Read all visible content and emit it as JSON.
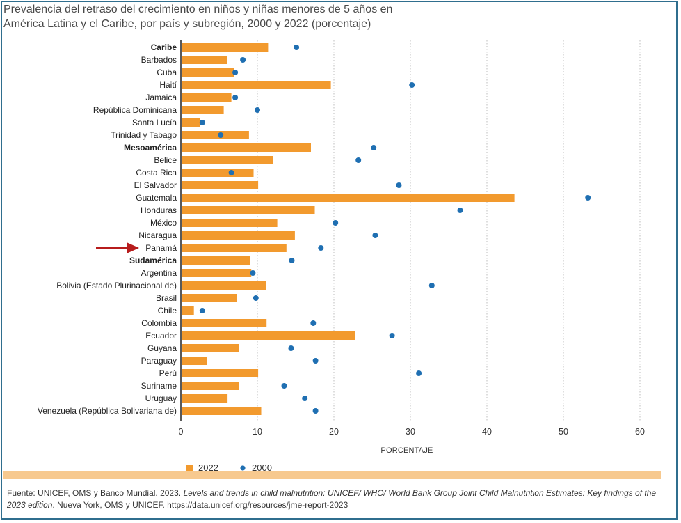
{
  "title": {
    "line1": "Prevalencia del retraso del crecimiento en niños y niñas menores de 5 años en",
    "line2": "América Latina y el Caribe, por país y subregión, 2000 y 2022 (porcentaje)"
  },
  "chart_data": {
    "type": "bar",
    "orientation": "horizontal",
    "title": "Prevalencia del retraso del crecimiento en niños y niñas menores de 5 años en América Latina y el Caribe, por país y subregión, 2000 y 2022 (porcentaje)",
    "xlabel": "PORCENTAJE",
    "xlim": [
      0,
      60
    ],
    "xticks": [
      "0",
      "10",
      "20",
      "30",
      "40",
      "50",
      "60"
    ],
    "grid": "vertical-dotted",
    "legend_position": "bottom-left",
    "highlight_marker": "arrow",
    "categories": [
      {
        "name": "Caribe",
        "bold": true,
        "highlight": false
      },
      {
        "name": "Barbados",
        "bold": false,
        "highlight": false
      },
      {
        "name": "Cuba",
        "bold": false,
        "highlight": false
      },
      {
        "name": "Haití",
        "bold": false,
        "highlight": false
      },
      {
        "name": "Jamaica",
        "bold": false,
        "highlight": false
      },
      {
        "name": "República Dominicana",
        "bold": false,
        "highlight": false
      },
      {
        "name": "Santa Lucía",
        "bold": false,
        "highlight": false
      },
      {
        "name": "Trinidad y Tabago",
        "bold": false,
        "highlight": false
      },
      {
        "name": "Mesoamérica",
        "bold": true,
        "highlight": false
      },
      {
        "name": "Belice",
        "bold": false,
        "highlight": false
      },
      {
        "name": "Costa Rica",
        "bold": false,
        "highlight": false
      },
      {
        "name": "El Salvador",
        "bold": false,
        "highlight": false
      },
      {
        "name": "Guatemala",
        "bold": false,
        "highlight": false
      },
      {
        "name": "Honduras",
        "bold": false,
        "highlight": false
      },
      {
        "name": "México",
        "bold": false,
        "highlight": false
      },
      {
        "name": "Nicaragua",
        "bold": false,
        "highlight": false
      },
      {
        "name": "Panamá",
        "bold": false,
        "highlight": true
      },
      {
        "name": "Sudamérica",
        "bold": true,
        "highlight": false
      },
      {
        "name": "Argentina",
        "bold": false,
        "highlight": false
      },
      {
        "name": "Bolivia (Estado Plurinacional de)",
        "bold": false,
        "highlight": false
      },
      {
        "name": "Brasil",
        "bold": false,
        "highlight": false
      },
      {
        "name": "Chile",
        "bold": false,
        "highlight": false
      },
      {
        "name": "Colombia",
        "bold": false,
        "highlight": false
      },
      {
        "name": "Ecuador",
        "bold": false,
        "highlight": false
      },
      {
        "name": "Guyana",
        "bold": false,
        "highlight": false
      },
      {
        "name": "Paraguay",
        "bold": false,
        "highlight": false
      },
      {
        "name": "Perú",
        "bold": false,
        "highlight": false
      },
      {
        "name": "Suriname",
        "bold": false,
        "highlight": false
      },
      {
        "name": "Uruguay",
        "bold": false,
        "highlight": false
      },
      {
        "name": "Venezuela (República Bolivariana de)",
        "bold": false,
        "highlight": false
      }
    ],
    "series": [
      {
        "name": "2022",
        "kind": "bar",
        "color": "#f29a2e",
        "values": [
          11.4,
          6.0,
          7.0,
          19.6,
          6.6,
          5.6,
          2.5,
          8.9,
          17.0,
          12.0,
          9.5,
          10.1,
          43.6,
          17.5,
          12.6,
          14.9,
          13.8,
          9.0,
          9.2,
          11.1,
          7.3,
          1.7,
          11.2,
          22.8,
          7.6,
          3.4,
          10.1,
          7.6,
          6.1,
          10.5
        ]
      },
      {
        "name": "2000",
        "kind": "dot",
        "color": "#1f6fb2",
        "values": [
          15.1,
          8.1,
          7.1,
          30.2,
          7.1,
          10.0,
          2.8,
          5.2,
          25.2,
          23.2,
          6.6,
          28.5,
          53.2,
          36.5,
          20.2,
          25.4,
          18.3,
          14.5,
          9.4,
          32.8,
          9.8,
          2.8,
          17.3,
          27.6,
          14.4,
          17.6,
          31.1,
          13.5,
          16.2,
          17.6
        ]
      }
    ]
  },
  "legend": {
    "label_2022": "2022",
    "label_2000": "2000"
  },
  "source": {
    "prefix": "Fuente: UNICEF, OMS y Banco Mundial. 2023. ",
    "italic": "Levels and trends in child malnutrition: UNICEF/ WHO/ World Bank Group Joint Child Malnutrition Estimates: Key findings of the 2023 edition",
    "suffix": ". Nueva York, OMS y UNICEF. https://data.unicef.org/resources/jme-report-2023"
  }
}
